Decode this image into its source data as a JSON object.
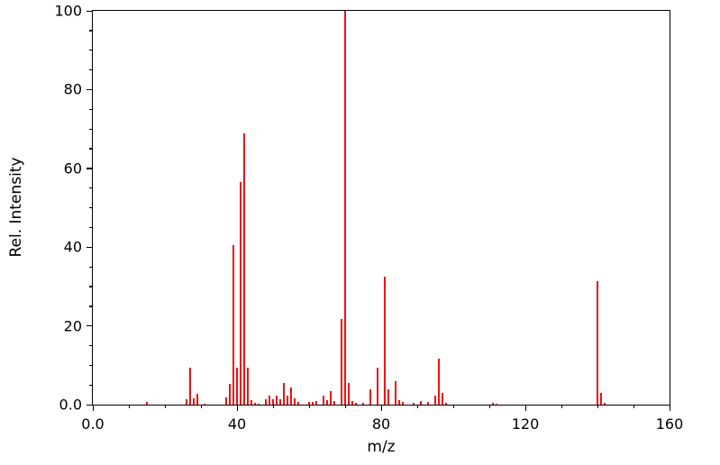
{
  "chart_data": {
    "type": "bar",
    "subtype": "mass-spectrum-stick-plot",
    "title": "",
    "xlabel": "m/z",
    "ylabel": "Rel. Intensity",
    "xlim": [
      0,
      160
    ],
    "ylim": [
      0,
      100
    ],
    "grid": false,
    "legend": "none",
    "bar_color": "#ee1111",
    "axis_color": "#000000",
    "background_color": "#ffffff",
    "x_major_ticks": [
      {
        "value": 0,
        "label": "0.0"
      },
      {
        "value": 40,
        "label": "40"
      },
      {
        "value": 80,
        "label": "80"
      },
      {
        "value": 120,
        "label": "120"
      },
      {
        "value": 160,
        "label": "160"
      }
    ],
    "x_minor_ticks": [
      10,
      20,
      30,
      50,
      60,
      70,
      90,
      100,
      110,
      130,
      140,
      150
    ],
    "y_major_ticks": [
      {
        "value": 0,
        "label": "0.0"
      },
      {
        "value": 20,
        "label": "20"
      },
      {
        "value": 40,
        "label": "40"
      },
      {
        "value": 60,
        "label": "60"
      },
      {
        "value": 80,
        "label": "80"
      },
      {
        "value": 100,
        "label": "100"
      }
    ],
    "y_minor_ticks": [
      5,
      10,
      15,
      25,
      30,
      35,
      45,
      50,
      55,
      65,
      70,
      75,
      85,
      90,
      95
    ],
    "peaks": [
      {
        "mz": 15,
        "intensity": 0.8
      },
      {
        "mz": 26,
        "intensity": 1.4
      },
      {
        "mz": 27,
        "intensity": 9.4
      },
      {
        "mz": 28,
        "intensity": 1.6
      },
      {
        "mz": 29,
        "intensity": 2.7
      },
      {
        "mz": 31,
        "intensity": 0.3
      },
      {
        "mz": 37,
        "intensity": 1.8
      },
      {
        "mz": 38,
        "intensity": 5.2
      },
      {
        "mz": 39,
        "intensity": 40.4
      },
      {
        "mz": 40,
        "intensity": 9.4
      },
      {
        "mz": 41,
        "intensity": 56.5
      },
      {
        "mz": 42,
        "intensity": 68.8
      },
      {
        "mz": 43,
        "intensity": 9.4
      },
      {
        "mz": 44,
        "intensity": 1.2
      },
      {
        "mz": 45,
        "intensity": 0.5
      },
      {
        "mz": 46,
        "intensity": 0.3
      },
      {
        "mz": 48,
        "intensity": 1.3
      },
      {
        "mz": 49,
        "intensity": 2.2
      },
      {
        "mz": 50,
        "intensity": 1.4
      },
      {
        "mz": 51,
        "intensity": 2.2
      },
      {
        "mz": 52,
        "intensity": 1.4
      },
      {
        "mz": 53,
        "intensity": 5.4
      },
      {
        "mz": 54,
        "intensity": 2.3
      },
      {
        "mz": 55,
        "intensity": 4.3
      },
      {
        "mz": 56,
        "intensity": 1.5
      },
      {
        "mz": 57,
        "intensity": 0.7
      },
      {
        "mz": 60,
        "intensity": 0.6
      },
      {
        "mz": 61,
        "intensity": 0.8
      },
      {
        "mz": 62,
        "intensity": 0.9
      },
      {
        "mz": 64,
        "intensity": 2.3
      },
      {
        "mz": 65,
        "intensity": 1.1
      },
      {
        "mz": 66,
        "intensity": 3.4
      },
      {
        "mz": 67,
        "intensity": 1.0
      },
      {
        "mz": 69,
        "intensity": 21.8
      },
      {
        "mz": 70,
        "intensity": 100.0
      },
      {
        "mz": 71,
        "intensity": 5.5
      },
      {
        "mz": 72,
        "intensity": 0.9
      },
      {
        "mz": 73,
        "intensity": 0.4
      },
      {
        "mz": 75,
        "intensity": 0.4
      },
      {
        "mz": 77,
        "intensity": 3.8
      },
      {
        "mz": 79,
        "intensity": 9.4
      },
      {
        "mz": 81,
        "intensity": 32.5
      },
      {
        "mz": 82,
        "intensity": 4.0
      },
      {
        "mz": 84,
        "intensity": 6.0
      },
      {
        "mz": 85,
        "intensity": 1.1
      },
      {
        "mz": 86,
        "intensity": 0.8
      },
      {
        "mz": 89,
        "intensity": 0.4
      },
      {
        "mz": 91,
        "intensity": 0.9
      },
      {
        "mz": 93,
        "intensity": 0.6
      },
      {
        "mz": 95,
        "intensity": 2.3
      },
      {
        "mz": 96,
        "intensity": 11.7
      },
      {
        "mz": 97,
        "intensity": 3.0
      },
      {
        "mz": 98,
        "intensity": 0.5
      },
      {
        "mz": 111,
        "intensity": 0.5
      },
      {
        "mz": 112,
        "intensity": 0.3
      },
      {
        "mz": 140,
        "intensity": 31.3
      },
      {
        "mz": 141,
        "intensity": 2.9
      },
      {
        "mz": 142,
        "intensity": 0.5
      }
    ]
  }
}
